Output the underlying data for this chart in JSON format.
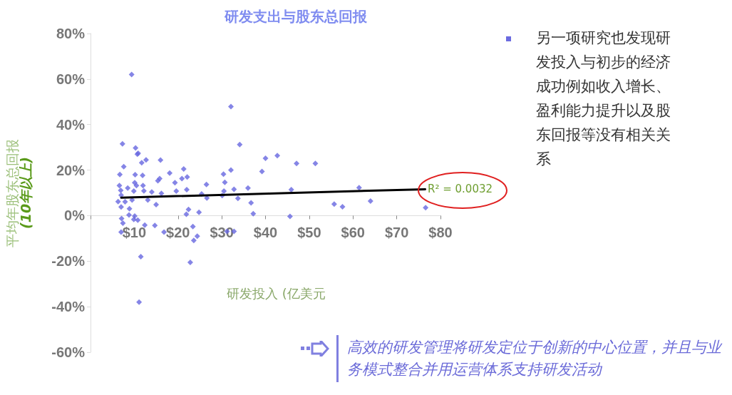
{
  "chart_data": {
    "type": "scatter",
    "title": "研发支出与股东总回报",
    "xlabel": "研发投入 (亿美元",
    "ylabel": "平均年股东总回报\n(10年以上)",
    "annotations": [
      "R² = 0.0032",
      "另一项研究也发现研发投入与初步的经济成功例如收入增长、盈利能力提升以及股东回报等没有相关关系",
      "高效的研发管理将研发定位于创新的中心位置，并且与业务模式整合并用运营体系支持研发活动"
    ],
    "xlim": [
      0,
      80
    ],
    "xticks": [
      {
        "value": 0,
        "label": null
      },
      {
        "value": 10,
        "label": "$10"
      },
      {
        "value": 20,
        "label": "$20"
      },
      {
        "value": 30,
        "label": "$30"
      },
      {
        "value": 40,
        "label": "$40"
      },
      {
        "value": 50,
        "label": "$50"
      },
      {
        "value": 60,
        "label": "$60"
      },
      {
        "value": 70,
        "label": "$70"
      },
      {
        "value": 80,
        "label": "$80"
      }
    ],
    "ylim": [
      -60,
      80
    ],
    "yticks": [
      {
        "value": -60,
        "label": "-60%"
      },
      {
        "value": -40,
        "label": "-40%"
      },
      {
        "value": -20,
        "label": "-20%"
      },
      {
        "value": 0,
        "label": "0%"
      },
      {
        "value": 20,
        "label": "20%"
      },
      {
        "value": 40,
        "label": "40%"
      },
      {
        "value": 60,
        "label": "60%"
      },
      {
        "value": 80,
        "label": "80%"
      }
    ],
    "marker": "diamond",
    "series": [
      {
        "color": "#6666e0",
        "x": [
          9.4,
          7.3,
          10.3,
          10.7,
          10.9,
          7.6,
          11.7,
          12.7,
          16,
          6.7,
          10.2,
          11.9,
          18.1,
          21.3,
          22.1,
          20.9,
          19.3,
          15.8,
          15.4,
          6.6,
          10.1,
          10.5,
          8.5,
          6.9,
          12,
          12.2,
          9.9,
          14,
          16.2,
          19.6,
          22,
          25.4,
          26.5,
          26.6,
          7,
          9.5,
          6.3,
          7,
          7.9,
          13.1,
          15,
          8.9,
          8.8,
          10.1,
          9.9,
          10.8,
          7.1,
          7.4,
          12.4,
          14.7,
          16.8,
          7,
          22.4,
          21.9,
          24.8,
          23.4,
          23.6,
          24.4,
          11.5,
          22.8,
          11.1,
          32.1,
          34.1,
          42.7,
          40,
          47.1,
          51.4,
          32.1,
          39.2,
          30.4,
          30.7,
          30.5,
          32.8,
          36,
          30.1,
          33.7,
          36.7,
          37.2,
          45.9,
          45.6,
          55.7,
          57.6,
          61.4,
          64,
          76.6,
          31.2,
          32.8
        ],
        "values": [
          62,
          31.5,
          29.7,
          27,
          27.4,
          21.5,
          23.2,
          24.5,
          24.4,
          18.1,
          18,
          17.7,
          18.7,
          20.5,
          17,
          16.3,
          14.5,
          16.3,
          15.3,
          13.2,
          14.5,
          13.2,
          12.1,
          11.1,
          13.2,
          10.9,
          10.8,
          10.4,
          9.8,
          10.8,
          11.4,
          9.5,
          13.7,
          7.7,
          9,
          6.9,
          6.2,
          3.8,
          6.1,
          6.9,
          4.8,
          3,
          0.3,
          -0.2,
          -1.7,
          -2,
          -1.3,
          -3.3,
          -4.2,
          -4.3,
          -7.2,
          -7.2,
          2.7,
          0.6,
          1.5,
          -4.8,
          -10.9,
          -9,
          -18,
          -20.5,
          -38,
          47.9,
          31.2,
          26.4,
          25.2,
          22.9,
          22.9,
          20,
          19.4,
          18.2,
          14.6,
          10.8,
          11.6,
          12.1,
          8.8,
          7.6,
          5.6,
          0.8,
          11.4,
          -0.3,
          5.1,
          3.9,
          12.3,
          6.4,
          3.5,
          -6.9,
          -6.9
        ]
      },
      {
        "type": "line",
        "color": "#000000",
        "marker": "none",
        "x": [
          7,
          76.5
        ],
        "values": [
          7.9,
          11.6
        ]
      }
    ]
  }
}
